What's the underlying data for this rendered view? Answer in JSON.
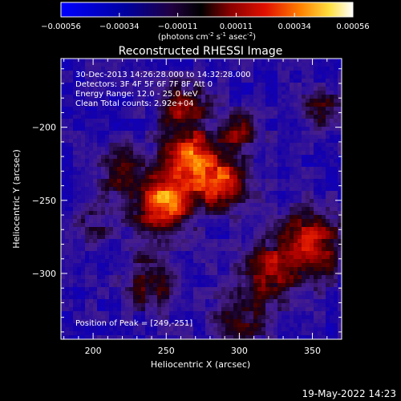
{
  "chart_data": {
    "type": "heatmap",
    "title": "Reconstructed RHESSI Image",
    "xlabel": "Heliocentric X (arcsec)",
    "ylabel": "Heliocentric Y (arcsec)",
    "xlim": [
      178,
      370
    ],
    "ylim": [
      -345,
      -153
    ],
    "x_ticks": [
      200,
      250,
      300,
      350
    ],
    "y_ticks": [
      -200,
      -250,
      -300
    ],
    "colorbar": {
      "range": [
        -0.00056,
        0.00056
      ],
      "ticks": [
        "-0.00056",
        "-0.00034",
        "-0.00011",
        "0.00011",
        "0.00034",
        "0.00056"
      ],
      "units_text": "(photons cm",
      "units_exp1": "-2",
      "units_mid": " s",
      "units_exp2": "-1",
      "units_mid2": " asec",
      "units_exp3": "-2",
      "units_end": ")"
    },
    "annotations": [
      "30-Dec-2013 14:26:28.000 to 14:32:28.000",
      "Detectors: 3F 4F 5F 6F 7F 8F  Att 0",
      "Energy Range: 12.0 - 25.0 keV",
      "Clean     Total counts: 2.92e+04"
    ],
    "peak_label": "Position of Peak = [249,-251]",
    "peak": [
      249,
      -251
    ],
    "sources": [
      {
        "x": 249,
        "y": -251,
        "amp": 1.0,
        "sigma": 14
      },
      {
        "x": 266,
        "y": -220,
        "amp": 0.85,
        "sigma": 12
      },
      {
        "x": 288,
        "y": -238,
        "amp": 0.8,
        "sigma": 13
      },
      {
        "x": 262,
        "y": -186,
        "amp": 0.55,
        "sigma": 12
      },
      {
        "x": 300,
        "y": -203,
        "amp": 0.45,
        "sigma": 10
      },
      {
        "x": 348,
        "y": -280,
        "amp": 0.7,
        "sigma": 16
      },
      {
        "x": 318,
        "y": -300,
        "amp": 0.55,
        "sigma": 14
      },
      {
        "x": 240,
        "y": -305,
        "amp": 0.45,
        "sigma": 14
      },
      {
        "x": 220,
        "y": -230,
        "amp": 0.4,
        "sigma": 12
      },
      {
        "x": 357,
        "y": -190,
        "amp": 0.45,
        "sigma": 10
      },
      {
        "x": 300,
        "y": -335,
        "amp": 0.4,
        "sigma": 14
      },
      {
        "x": 200,
        "y": -265,
        "amp": 0.3,
        "sigma": 10
      }
    ]
  },
  "footer": {
    "timestamp": "19-May-2022 14:23"
  }
}
